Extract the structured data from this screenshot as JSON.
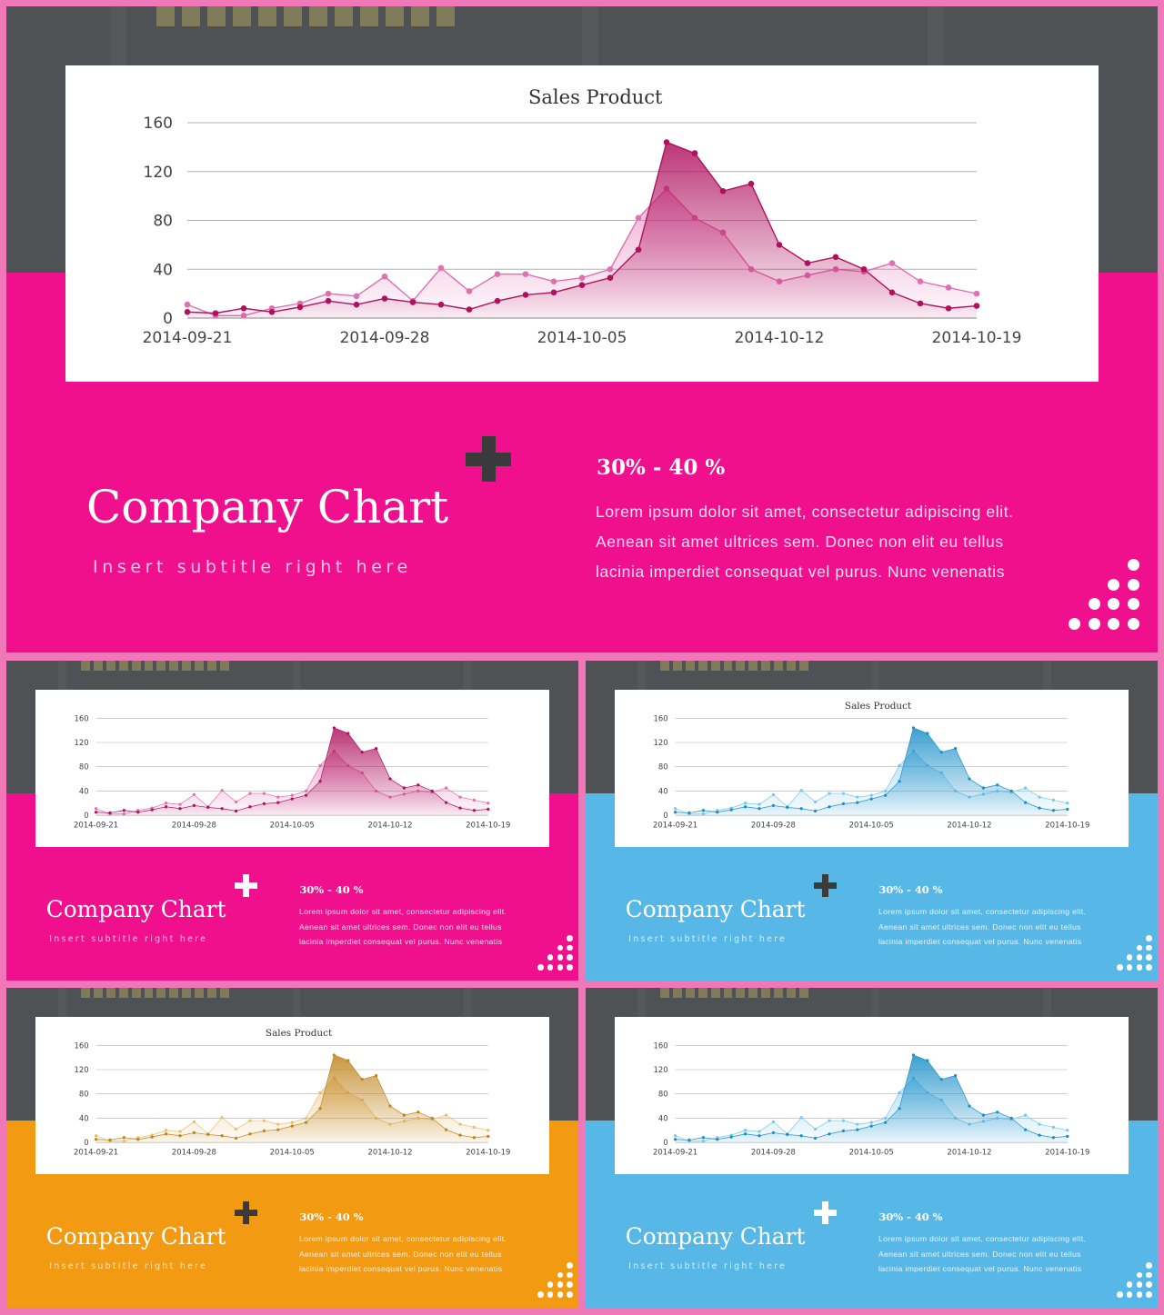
{
  "colors": {
    "pink": "#f0108e",
    "blue": "#57b8e8",
    "orange": "#f29a12",
    "dark_bg": "#4f5254",
    "plus_dark": "#3a3a3a"
  },
  "slides": [
    {
      "theme": "pink",
      "title": "Company Chart",
      "subtitle": "Insert subtitle right here",
      "percent": "30% - 40 %",
      "body": [
        "Lorem ipsum dolor sit amet, consectetur adipiscing elit.",
        "Aenean sit amet ultrices sem. Donec non elit eu tellus",
        "lacinia imperdiet consequat vel purus. Nunc venenatis"
      ],
      "plus_color": "#3a3a3a",
      "chart_title": "Sales Product",
      "series_colors": [
        "#b0115f",
        "#e070b0"
      ]
    },
    {
      "theme": "pink",
      "title": "Company Chart",
      "subtitle": "Insert subtitle right here",
      "percent": "30% - 40 %",
      "body": [
        "Lorem ipsum dolor sit amet, consectetur adipiscing elit.",
        "Aenean sit amet ultrices sem. Donec non elit eu tellus",
        "lacinia imperdiet consequat vel purus. Nunc venenatis"
      ],
      "plus_color": "#ffffff",
      "chart_title": "",
      "series_colors": [
        "#b0115f",
        "#e070b0"
      ]
    },
    {
      "theme": "blue",
      "title": "Company Chart",
      "subtitle": "Insert subtitle right here",
      "percent": "30% - 40 %",
      "body": [
        "Lorem ipsum dolor sit amet, consectetur adipiscing elit.",
        "Aenean sit amet ultrices sem. Donec non elit eu tellus",
        "lacinia imperdiet consequat vel purus. Nunc venenatis"
      ],
      "plus_color": "#3a3a3a",
      "chart_title": "Sales Product",
      "series_colors": [
        "#1a8fc8",
        "#7cc6ea"
      ]
    },
    {
      "theme": "orange",
      "title": "Company Chart",
      "subtitle": "Insert subtitle right here",
      "percent": "30% - 40 %",
      "body": [
        "Lorem ipsum dolor sit amet, consectetur adipiscing elit.",
        "Aenean sit amet ultrices sem. Donec non elit eu tellus",
        "lacinia imperdiet consequat vel purus. Nunc venenatis"
      ],
      "plus_color": "#3a3a3a",
      "chart_title": "Sales Product",
      "series_colors": [
        "#c0841e",
        "#e8be70"
      ]
    },
    {
      "theme": "blue",
      "title": "Company Chart",
      "subtitle": "Insert subtitle right here",
      "percent": "30% - 40 %",
      "body": [
        "Lorem ipsum dolor sit amet, consectetur adipiscing elit.",
        "Aenean sit amet ultrices sem. Donec non elit eu tellus",
        "lacinia imperdiet consequat vel purus. Nunc venenatis"
      ],
      "plus_color": "#ffffff",
      "chart_title": "",
      "series_colors": [
        "#1a8fc8",
        "#7cc6ea"
      ]
    }
  ],
  "chart_data": {
    "type": "area",
    "x_tick_labels": [
      "2014-09-21",
      "2014-09-28",
      "2014-10-05",
      "2014-10-12",
      "2014-10-19"
    ],
    "x": [
      "2014-09-21",
      "2014-09-22",
      "2014-09-23",
      "2014-09-24",
      "2014-09-25",
      "2014-09-26",
      "2014-09-27",
      "2014-09-28",
      "2014-09-29",
      "2014-09-30",
      "2014-10-01",
      "2014-10-02",
      "2014-10-03",
      "2014-10-04",
      "2014-10-05",
      "2014-10-06",
      "2014-10-07",
      "2014-10-08",
      "2014-10-09",
      "2014-10-10",
      "2014-10-11",
      "2014-10-12",
      "2014-10-13",
      "2014-10-14",
      "2014-10-15",
      "2014-10-16",
      "2014-10-17",
      "2014-10-18",
      "2014-10-19"
    ],
    "series": [
      {
        "values": [
          5,
          4,
          8,
          5,
          9,
          14,
          11,
          16,
          13,
          11,
          7,
          14,
          19,
          21,
          27,
          33,
          56,
          144,
          135,
          104,
          110,
          60,
          45,
          50,
          40,
          21,
          12,
          8,
          10
        ]
      },
      {
        "values": [
          11,
          2,
          2,
          8,
          12,
          20,
          18,
          34,
          14,
          41,
          22,
          36,
          36,
          30,
          33,
          40,
          82,
          106,
          82,
          70,
          40,
          30,
          35,
          40,
          38,
          45,
          30,
          25,
          20
        ]
      }
    ],
    "ylim": [
      0,
      160
    ],
    "y_ticks": [
      0,
      40,
      80,
      120,
      160
    ],
    "grid": true
  }
}
